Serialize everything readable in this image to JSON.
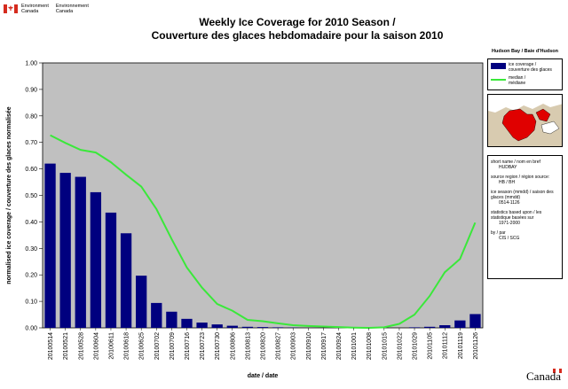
{
  "header": {
    "dept_en_line1": "Environment",
    "dept_en_line2": "Canada",
    "dept_fr_line1": "Environnement",
    "dept_fr_line2": "Canada"
  },
  "title_line1": "Weekly Ice Coverage for 2010 Season /",
  "title_line2": "Couverture des glaces hebdomadaire pour la saison 2010",
  "region_heading": "Hudson Bay / Baie d'Hudson",
  "legend": {
    "coverage_line1": "ice coverage /",
    "coverage_line2": "couverture des glaces",
    "median_line1": "median /",
    "median_line2": "médiane"
  },
  "info": {
    "short_name_label": "short name / nom en bref",
    "short_name_value": "HUDBAY",
    "source_region_label": "source region / région source:",
    "source_region_value": "HB / BH",
    "ice_season_label": "ice season (mmdd) / saison des glaces (mmdd)",
    "ice_season_value": "0514-1126",
    "stats_label": "statistics based upon / les statistique basées sur",
    "stats_value": "1971-2000",
    "by_label": "by / par",
    "by_value": "CIS / SCG"
  },
  "wordmark": "Canada",
  "colors": {
    "bar": "#00007f",
    "median": "#3ae83a",
    "plot_bg": "#c0c0c0",
    "map_land": "#d8cbb0",
    "map_ice": "#e00000"
  },
  "chart_data": {
    "type": "bar",
    "xlabel": "date / date",
    "ylabel": "normalised ice coverage / couverture des glaces normalisée",
    "ylim": [
      0,
      1.0
    ],
    "yticks": [
      "0.00",
      "0.10",
      "0.20",
      "0.30",
      "0.40",
      "0.50",
      "0.60",
      "0.70",
      "0.80",
      "0.90",
      "1.00"
    ],
    "grid": false,
    "legend_position": "right",
    "categories": [
      "20100514",
      "20100521",
      "20100528",
      "20100604",
      "20100611",
      "20100618",
      "20100625",
      "20100702",
      "20100709",
      "20100716",
      "20100723",
      "20100730",
      "20100806",
      "20100813",
      "20100820",
      "20100827",
      "20100903",
      "20100910",
      "20100917",
      "20100924",
      "20101001",
      "20101008",
      "20101015",
      "20101022",
      "20101029",
      "20101105",
      "20101112",
      "20101119",
      "20101126"
    ],
    "tick_labels_shown": [
      "20100514",
      "20100521",
      "20100528",
      "20100604",
      "20100611",
      "20100618",
      "20100625",
      "20100702",
      "20100709",
      "20100716",
      "20100723",
      "20100730",
      "20100806",
      "20100813",
      "20100820",
      "20100827",
      "20100903",
      "20100910",
      "20100917",
      "20100924",
      "20101001",
      "20101008",
      "20101015",
      "20101022",
      "20101029",
      "20101105",
      "20101112",
      "20101119",
      "20101126"
    ],
    "series": [
      {
        "name": "ice coverage / couverture des glaces",
        "kind": "bar",
        "values": [
          0.62,
          0.585,
          0.57,
          0.512,
          0.435,
          0.357,
          0.197,
          0.094,
          0.061,
          0.034,
          0.02,
          0.013,
          0.008,
          0.004,
          0.003,
          0.002,
          0.001,
          0.0,
          0.0,
          0.0,
          0.0,
          0.0,
          0.0,
          0.0,
          0.002,
          0.004,
          0.01,
          0.028,
          0.052
        ]
      },
      {
        "name": "median / médiane",
        "kind": "line",
        "values": [
          0.727,
          0.698,
          0.672,
          0.662,
          0.625,
          0.578,
          0.533,
          0.448,
          0.335,
          0.228,
          0.152,
          0.09,
          0.065,
          0.03,
          0.025,
          0.017,
          0.01,
          0.007,
          0.005,
          0.003,
          0.001,
          0.0,
          0.002,
          0.015,
          0.05,
          0.12,
          0.21,
          0.26,
          0.397
        ]
      }
    ]
  }
}
